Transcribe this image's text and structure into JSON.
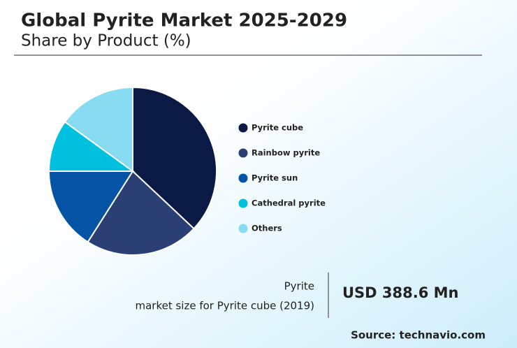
{
  "chart_data": {
    "type": "pie",
    "title": "Global Pyrite Market 2025-2029",
    "subtitle": "Share by Product (%)",
    "categories": [
      "Pyrite cube",
      "Rainbow pyrite",
      "Pyrite sun",
      "Cathedral pyrite",
      "Others"
    ],
    "values": [
      37,
      22,
      16,
      10,
      15
    ],
    "colors": [
      "#0a1a44",
      "#2a3f73",
      "#0453a4",
      "#00c0e0",
      "#87dcf2"
    ],
    "annotations": {
      "segment": "Pyrite",
      "metric": "market size for Pyrite cube (2019)",
      "value": "USD 388.6 Mn",
      "source": "Source: technavio.com"
    }
  }
}
